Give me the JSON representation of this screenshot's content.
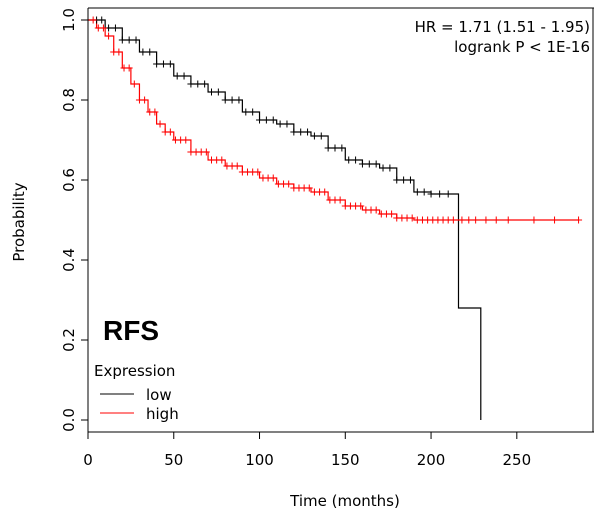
{
  "chart_data": {
    "type": "line",
    "subtype": "kaplan-meier",
    "xlabel": "Time (months)",
    "ylabel": "Probability",
    "xlim": [
      0,
      295
    ],
    "ylim": [
      -0.03,
      1.03
    ],
    "xticks": [
      0,
      50,
      100,
      150,
      200,
      250
    ],
    "yticks": [
      0.0,
      0.2,
      0.4,
      0.6,
      0.8,
      1.0
    ],
    "ytick_labels": [
      "0.0",
      "0.2",
      "0.4",
      "0.6",
      "0.8",
      "1.0"
    ],
    "annotations": {
      "hr": "HR = 1.71 (1.51 - 1.95)",
      "logrank": "logrank P < 1E-16",
      "panel_label": "RFS"
    },
    "legend": {
      "title": "Expression",
      "position": "bottom-left",
      "entries": [
        {
          "label": "low",
          "color": "#000000"
        },
        {
          "label": "high",
          "color": "#ff0000"
        }
      ]
    },
    "grid": false,
    "series": [
      {
        "name": "low",
        "color": "#000000",
        "points": [
          [
            0,
            1.0
          ],
          [
            10,
            0.98
          ],
          [
            20,
            0.95
          ],
          [
            30,
            0.92
          ],
          [
            40,
            0.89
          ],
          [
            50,
            0.86
          ],
          [
            60,
            0.84
          ],
          [
            70,
            0.82
          ],
          [
            80,
            0.8
          ],
          [
            90,
            0.77
          ],
          [
            100,
            0.75
          ],
          [
            110,
            0.74
          ],
          [
            120,
            0.72
          ],
          [
            130,
            0.71
          ],
          [
            140,
            0.68
          ],
          [
            150,
            0.65
          ],
          [
            160,
            0.64
          ],
          [
            170,
            0.63
          ],
          [
            180,
            0.6
          ],
          [
            190,
            0.57
          ],
          [
            200,
            0.565
          ],
          [
            216,
            0.565
          ],
          [
            216,
            0.28
          ],
          [
            229,
            0.28
          ],
          [
            229,
            0.0
          ]
        ],
        "censor_x": [
          5,
          8,
          12,
          16,
          20,
          24,
          28,
          32,
          36,
          40,
          44,
          48,
          52,
          56,
          60,
          64,
          68,
          72,
          76,
          80,
          84,
          88,
          92,
          96,
          100,
          104,
          108,
          112,
          116,
          120,
          124,
          128,
          132,
          136,
          140,
          144,
          148,
          152,
          156,
          160,
          164,
          168,
          172,
          176,
          180,
          184,
          188,
          192,
          196,
          200,
          205,
          210
        ]
      },
      {
        "name": "high",
        "color": "#ff0000",
        "points": [
          [
            0,
            1.0
          ],
          [
            5,
            0.98
          ],
          [
            10,
            0.96
          ],
          [
            15,
            0.92
          ],
          [
            20,
            0.88
          ],
          [
            25,
            0.84
          ],
          [
            30,
            0.8
          ],
          [
            35,
            0.77
          ],
          [
            40,
            0.74
          ],
          [
            45,
            0.72
          ],
          [
            50,
            0.7
          ],
          [
            60,
            0.67
          ],
          [
            70,
            0.65
          ],
          [
            80,
            0.635
          ],
          [
            90,
            0.62
          ],
          [
            100,
            0.605
          ],
          [
            110,
            0.59
          ],
          [
            120,
            0.58
          ],
          [
            130,
            0.57
          ],
          [
            140,
            0.55
          ],
          [
            150,
            0.535
          ],
          [
            160,
            0.525
          ],
          [
            170,
            0.515
          ],
          [
            180,
            0.505
          ],
          [
            190,
            0.5
          ],
          [
            286,
            0.5
          ]
        ],
        "censor_x": [
          3,
          6,
          9,
          12,
          15,
          18,
          21,
          24,
          27,
          30,
          33,
          36,
          39,
          42,
          45,
          48,
          51,
          54,
          57,
          60,
          63,
          66,
          69,
          72,
          75,
          78,
          81,
          84,
          87,
          90,
          93,
          96,
          99,
          102,
          105,
          108,
          111,
          114,
          117,
          120,
          123,
          126,
          129,
          132,
          135,
          138,
          141,
          144,
          147,
          150,
          153,
          156,
          159,
          162,
          165,
          168,
          171,
          174,
          177,
          180,
          183,
          186,
          189,
          192,
          195,
          198,
          201,
          204,
          207,
          210,
          213,
          218,
          222,
          226,
          232,
          238,
          245,
          260,
          272,
          286
        ]
      }
    ]
  }
}
